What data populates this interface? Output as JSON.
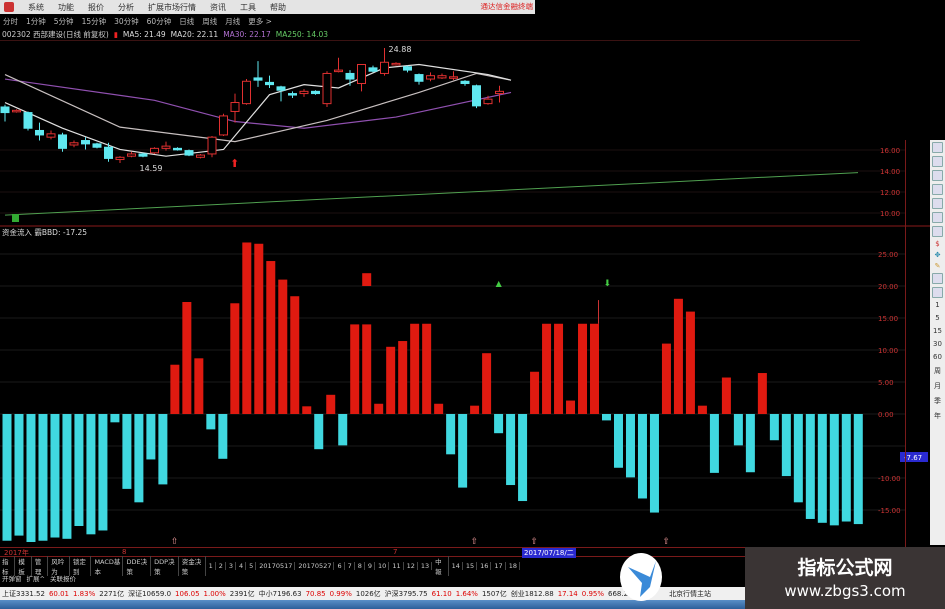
{
  "menubar": {
    "items": [
      "系统",
      "功能",
      "报价",
      "分析",
      "扩展市场行情",
      "资讯",
      "工具",
      "帮助"
    ],
    "brand": "通达信金融终端"
  },
  "periods": [
    "分时",
    "1分钟",
    "5分钟",
    "15分钟",
    "30分钟",
    "60分钟",
    "日线",
    "周线",
    "月线",
    "更多 >"
  ],
  "info": {
    "stock": "002302 西部建设(日线 前复权)",
    "ma5": "MA5: 21.49",
    "ma20": "MA20: 22.11",
    "ma30": "MA30: 22.17",
    "ma250": "MA250: 14.03"
  },
  "price_panel": {
    "high_label": "24.88",
    "low_label": "14.59",
    "axis_ticks": [
      "16.00",
      "14.00",
      "12.00",
      "10.00"
    ],
    "candles": [
      [
        19.6,
        19.1,
        19.8,
        18.3
      ],
      [
        19.2,
        19.3,
        19.4,
        19.1
      ],
      [
        19.1,
        17.7,
        19.2,
        17.5
      ],
      [
        17.5,
        17.1,
        18.2,
        16.6
      ],
      [
        16.9,
        17.2,
        17.5,
        16.7
      ],
      [
        17.1,
        15.9,
        17.3,
        15.6
      ],
      [
        16.2,
        16.4,
        16.6,
        16.0
      ],
      [
        16.6,
        16.3,
        16.9,
        15.8
      ],
      [
        16.3,
        16.0,
        16.4,
        15.9
      ],
      [
        16.0,
        15.0,
        16.4,
        14.7
      ],
      [
        14.9,
        15.1,
        15.2,
        14.59
      ],
      [
        15.2,
        15.4,
        15.6,
        15.1
      ],
      [
        15.4,
        15.2,
        15.5,
        15.1
      ],
      [
        15.5,
        15.9,
        16.0,
        15.4
      ],
      [
        15.9,
        16.1,
        16.5,
        15.7
      ],
      [
        15.9,
        15.8,
        16.0,
        15.7
      ],
      [
        15.7,
        15.3,
        15.8,
        15.2
      ],
      [
        15.1,
        15.3,
        15.4,
        15.0
      ],
      [
        15.4,
        16.9,
        17.0,
        15.1
      ],
      [
        17.1,
        18.8,
        19.0,
        17.0
      ],
      [
        19.2,
        20.0,
        20.8,
        18.2
      ],
      [
        19.9,
        21.9,
        22.1,
        19.8
      ],
      [
        22.2,
        22.0,
        23.7,
        21.4
      ],
      [
        21.8,
        21.6,
        22.4,
        21.3
      ],
      [
        21.4,
        21.1,
        21.5,
        20.1
      ],
      [
        20.8,
        20.7,
        21.0,
        20.4
      ],
      [
        20.8,
        21.0,
        21.2,
        20.5
      ],
      [
        21.0,
        20.8,
        21.1,
        20.7
      ],
      [
        19.9,
        22.6,
        22.8,
        19.6
      ],
      [
        22.8,
        22.9,
        24.0,
        22.7
      ],
      [
        22.6,
        22.1,
        22.9,
        21.5
      ],
      [
        21.7,
        23.4,
        23.4,
        21.0
      ],
      [
        23.1,
        22.8,
        23.3,
        22.7
      ],
      [
        22.6,
        23.6,
        24.88,
        22.4
      ],
      [
        23.4,
        23.5,
        23.6,
        23.3
      ],
      [
        23.2,
        22.9,
        23.3,
        22.7
      ],
      [
        22.5,
        21.9,
        22.6,
        21.6
      ],
      [
        22.1,
        22.4,
        22.7,
        21.9
      ],
      [
        22.2,
        22.4,
        22.6,
        22.1
      ],
      [
        22.2,
        22.3,
        22.8,
        22.0
      ],
      [
        21.9,
        21.7,
        22.0,
        21.5
      ],
      [
        21.5,
        19.7,
        21.6,
        19.5
      ],
      [
        19.9,
        20.3,
        20.6,
        19.8
      ],
      [
        20.8,
        21.0,
        21.5,
        20.0
      ]
    ],
    "ma5_line": [
      [
        0,
        20.0
      ],
      [
        5,
        17.7
      ],
      [
        10,
        15.8
      ],
      [
        14,
        15.2
      ],
      [
        19,
        15.8
      ],
      [
        23,
        20.7
      ],
      [
        26,
        21.6
      ],
      [
        29,
        21.3
      ],
      [
        33,
        23.1
      ],
      [
        36,
        23.4
      ],
      [
        42,
        22.5
      ],
      [
        44,
        22.0
      ]
    ],
    "ma20_line": [
      [
        0,
        22.5
      ],
      [
        10,
        17.8
      ],
      [
        20,
        16.5
      ],
      [
        28,
        18.4
      ],
      [
        36,
        20.9
      ],
      [
        41,
        22.6
      ],
      [
        44,
        22.0
      ]
    ],
    "ma30_line": [
      [
        0,
        22.1
      ],
      [
        13,
        20.2
      ],
      [
        20,
        18.3
      ],
      [
        26,
        17.7
      ],
      [
        34,
        18.7
      ],
      [
        44,
        20.9
      ]
    ],
    "ma250_range": [
      9.8,
      13.85
    ],
    "colors": {
      "up": "#e03030",
      "down": "#60e8f0",
      "ma5": "#e0e0e0",
      "ma20": "#c8c0c0",
      "ma30": "#9050b0",
      "ma250": "#50a050"
    }
  },
  "indicator": {
    "label": "资金流入 霸BBD: -17.25",
    "current_value": "-7.67"
  },
  "chart_data": {
    "type": "bar",
    "title": "资金流入 霸BBD: -17.25",
    "ylim": [
      -20,
      28
    ],
    "yticks": [
      "25.00",
      "20.00",
      "15.00",
      "10.00",
      "5.00",
      "0.00",
      "-10.00",
      "-15.00"
    ],
    "ytick_values": [
      25,
      20,
      15,
      10,
      5,
      0,
      -10,
      -15
    ],
    "values": [
      -19.8,
      -19,
      -20,
      -19.8,
      -19.3,
      -19.5,
      -17.5,
      -18.8,
      -18.2,
      -1.3,
      -11.7,
      -13.8,
      -7.1,
      -11,
      7.7,
      17.5,
      8.7,
      -2.4,
      -7,
      17.3,
      26.8,
      26.6,
      23.9,
      21,
      18.4,
      1.2,
      -5.5,
      3,
      -4.9,
      14,
      14,
      1.6,
      10.5,
      11.4,
      14.1,
      14.1,
      1.6,
      -6.3,
      -11.5,
      1.3,
      9.5,
      -3,
      -11.1,
      -13.6,
      6.6,
      14.1,
      14.1,
      2.1,
      14.1,
      14.1,
      -1,
      -8.4,
      -9.9,
      -13.2,
      -15.4,
      11,
      18,
      16,
      1.3,
      -9.2,
      5.7,
      -4.9,
      -9.1,
      6.4,
      -4.1,
      -9.7,
      -13.8,
      -16.4,
      -17,
      -17.4,
      -16.8,
      -17.2
    ],
    "positive_color": "#e01a10",
    "negative_color": "#40d8e0",
    "floating_block": {
      "index": 30,
      "from": 20,
      "to": 22
    },
    "spike": {
      "index": 49,
      "to": 17.8
    },
    "green_up_marker": {
      "index": 41,
      "value": 20
    },
    "green_down_marker": {
      "index": 50,
      "value": 20
    },
    "pink_markers": [
      14,
      39,
      44,
      55
    ]
  },
  "timeline": {
    "year": "2017年",
    "m1": "8",
    "m2": "7",
    "selected_date": "2017/07/18/二"
  },
  "tabs": [
    "指标",
    "模板",
    "管理",
    "风吟为",
    "锁定到",
    "MACD基本",
    "DDE决策",
    "DDP决策",
    "资金决策",
    "1",
    "2",
    "3",
    "4",
    "5",
    "20170517",
    "20170527",
    "6",
    "7",
    "8",
    "9",
    "10",
    "11",
    "12",
    "13",
    "中報",
    "14",
    "15",
    "16",
    "17",
    "18"
  ],
  "tabs2": [
    "开弹窗",
    "扩展^",
    "关联报价"
  ],
  "status": [
    {
      "name": "上证3331.52",
      "chg": "60.01",
      "pct": "1.83%",
      "amt": "2271亿"
    },
    {
      "name": "深证10659.0",
      "chg": "106.05",
      "pct": "1.00%",
      "amt": "2391亿"
    },
    {
      "name": "中小7196.63",
      "chg": "70.85",
      "pct": "0.99%",
      "amt": "1026亿"
    },
    {
      "name": "沪深3795.75",
      "chg": "61.10",
      "pct": "1.64%",
      "amt": "1507亿"
    },
    {
      "name": "创业1812.88",
      "chg": "17.14",
      "pct": "0.95%",
      "amt": "668.2亿"
    }
  ],
  "status_server": "北京行情主站",
  "sidebar": {
    "periods": [
      "1",
      "5",
      "15",
      "30",
      "60",
      "周",
      "月",
      "季",
      "年"
    ]
  },
  "watermark": {
    "title": "指标公式网",
    "url": "www.zbgs3.com"
  }
}
